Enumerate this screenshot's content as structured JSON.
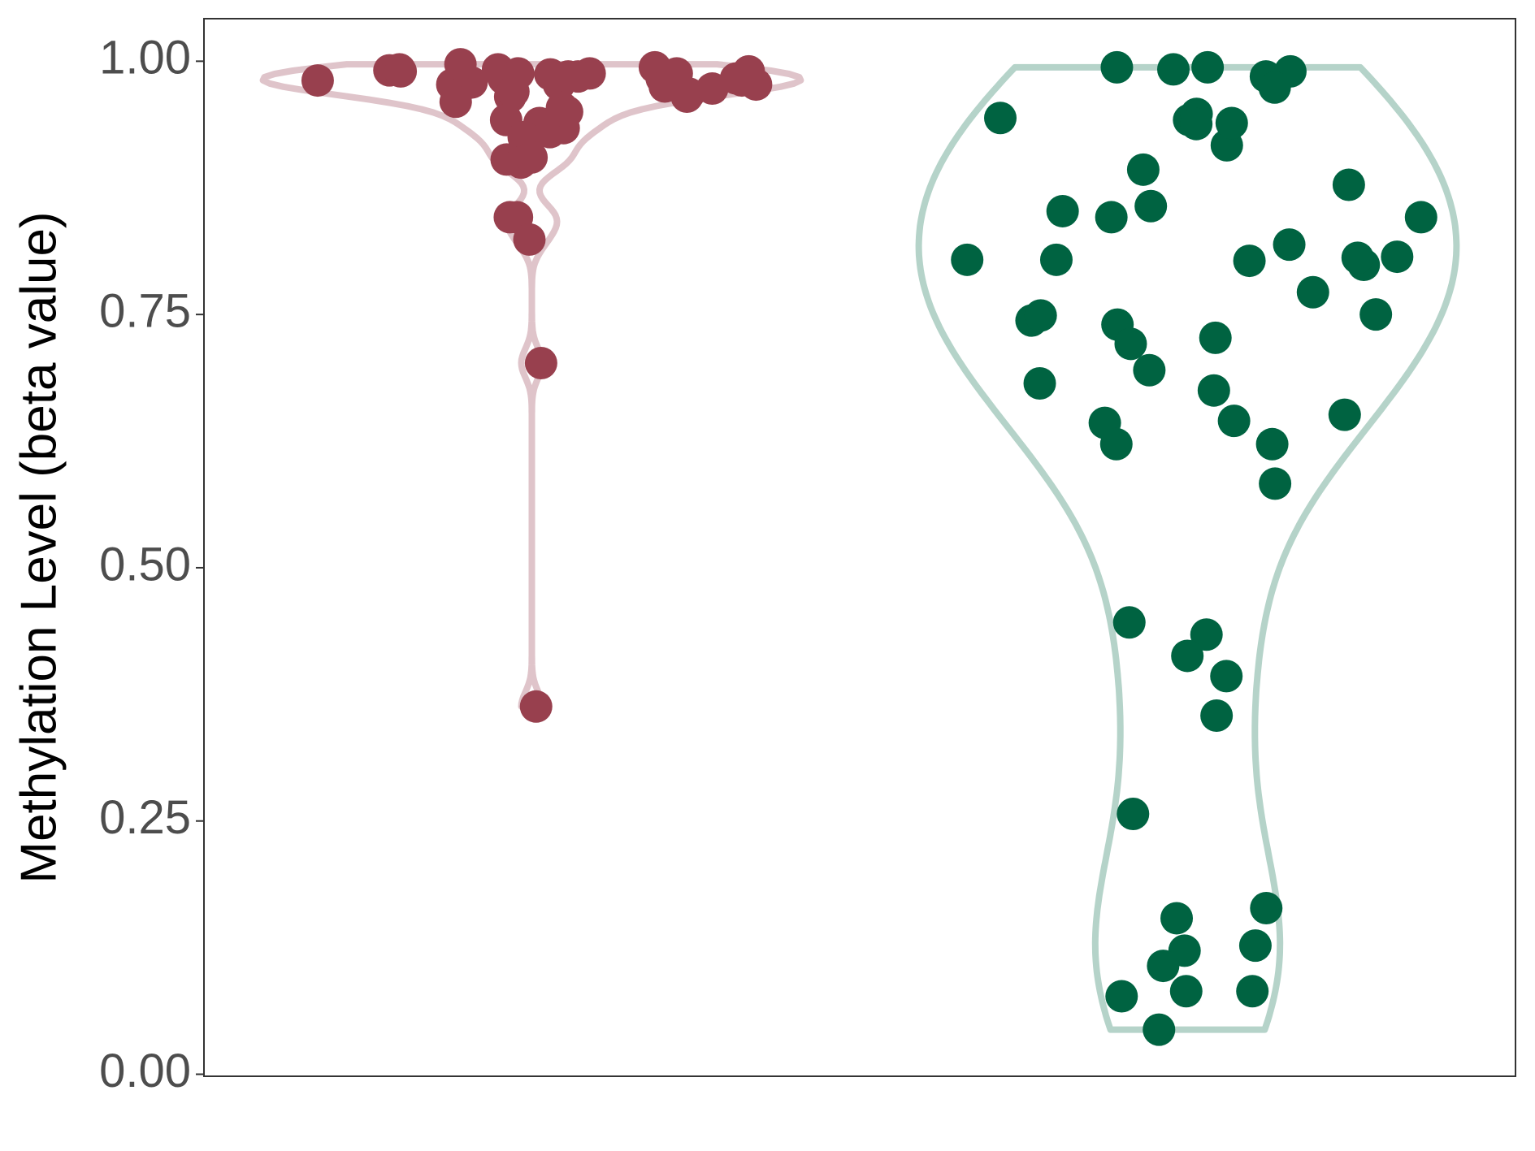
{
  "chart_data": {
    "type": "violin",
    "y_label": "Methylation Level (beta value)",
    "categories": [
      null,
      null
    ],
    "series": [
      {
        "color": "#98404e",
        "outline_color": "#dfc4ca",
        "values": [
          0.983,
          0.981,
          0.977,
          0.979,
          0.983,
          0.988,
          0.991,
          0.977,
          0.987,
          0.965,
          0.994,
          0.992,
          0.99,
          0.988,
          0.983,
          0.968,
          0.965,
          0.954,
          0.942,
          0.934,
          0.939,
          0.93,
          0.925,
          0.903,
          0.9,
          0.905,
          0.846,
          0.846,
          0.824,
          0.702,
          0.363,
          0.997,
          0.992,
          0.99,
          0.985,
          0.977,
          0.973,
          0.988,
          0.983,
          0.985,
          0.981,
          0.97,
          0.96,
          0.95,
          0.975
        ]
      },
      {
        "color": "#006341",
        "outline_color": "#b5d3c9",
        "values": [
          0.985,
          0.994,
          0.992,
          0.994,
          0.99,
          0.974,
          0.942,
          0.948,
          0.938,
          0.944,
          0.917,
          0.939,
          0.893,
          0.878,
          0.846,
          0.857,
          0.852,
          0.846,
          0.819,
          0.799,
          0.806,
          0.804,
          0.803,
          0.807,
          0.804,
          0.772,
          0.744,
          0.75,
          0.749,
          0.74,
          0.727,
          0.721,
          0.695,
          0.675,
          0.682,
          0.645,
          0.651,
          0.643,
          0.622,
          0.622,
          0.583,
          0.434,
          0.446,
          0.413,
          0.393,
          0.354,
          0.257,
          0.154,
          0.164,
          0.127,
          0.122,
          0.107,
          0.082,
          0.077,
          0.082,
          0.044
        ]
      }
    ],
    "ylim": [
      -0.002,
      1.042
    ],
    "yticks": [
      {
        "value": 0,
        "label": "0.00"
      },
      {
        "value": 0.25,
        "label": "0.25"
      },
      {
        "value": 0.5,
        "label": "0.50"
      },
      {
        "value": 0.75,
        "label": "0.75"
      },
      {
        "value": 1,
        "label": "1.00"
      }
    ],
    "grid": false
  }
}
